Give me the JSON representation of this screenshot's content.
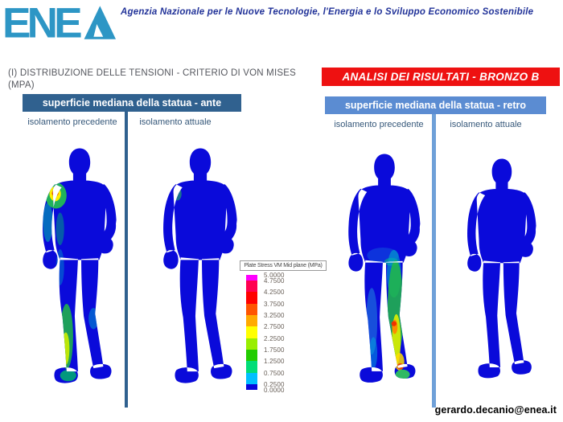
{
  "header": {
    "logo": "ENEA",
    "agency_name": "Agenzia Nazionale per le Nuove Tecnologie, l'Energia e lo Sviluppo Economico Sostenibile"
  },
  "title": "(I) DISTRIBUZIONE DELLE TENSIONI - CRITERIO DI VON MISES (MPA)",
  "result_banner": "ANALISI DEI RISULTATI - BRONZO B",
  "panels": [
    {
      "banner": "superficie mediana della statua - ante",
      "columns": [
        "isolamento precedente",
        "isolamento attuale"
      ]
    },
    {
      "banner": "superficie mediana della statua - retro",
      "columns": [
        "isolamento precedente",
        "isolamento attuale"
      ]
    }
  ],
  "legend": {
    "title": "Plate Stress VM Mid plane (MPa)",
    "tick_labels": [
      "5.0000",
      "4.7500",
      "4.2500",
      "3.7500",
      "3.2500",
      "2.7500",
      "2.2500",
      "1.7500",
      "1.2500",
      "0.7500",
      "0.2500",
      "0.0000"
    ],
    "band_colors": [
      "#FF00FF",
      "#FF0050",
      "#FF0000",
      "#FF5500",
      "#FFAA00",
      "#FFFF00",
      "#99EE00",
      "#22CC00",
      "#00DD77",
      "#00BFFF",
      "#0808DC"
    ],
    "value_min": 0.0,
    "value_max": 5.0
  },
  "footer": {
    "email": "gerardo.decanio@enea.it"
  },
  "colors": {
    "logo_teal": "#2D96C5",
    "header_text": "#223399",
    "banner_red": "#EE1111",
    "banner_dark_blue": "#30618F",
    "banner_light_blue": "#5B8CD2",
    "statue_blue": "#0A0ADA"
  }
}
